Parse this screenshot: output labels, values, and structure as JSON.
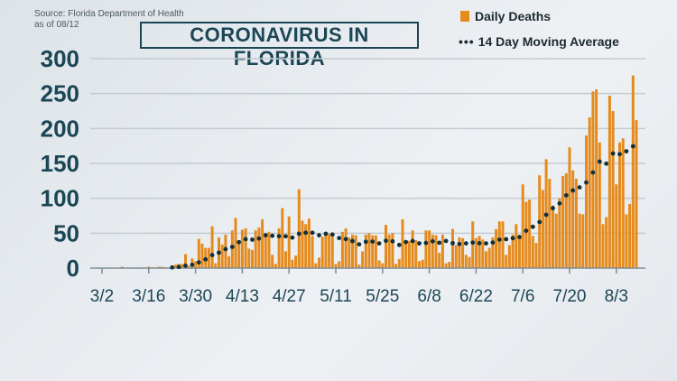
{
  "source": "Source: Florida Department of Health",
  "date": "as of 08/12",
  "chart_data": {
    "type": "bar",
    "title": "CORONAVIRUS IN FLORIDA",
    "start_date": "3/2",
    "legend": [
      {
        "name": "Daily Deaths",
        "color": "#e58b1e"
      },
      {
        "name": "14 Day Moving Average",
        "color": "#12303a"
      }
    ],
    "legend_position": "top-right",
    "ylim": [
      0,
      300
    ],
    "yticks": [
      "0",
      "50",
      "100",
      "150",
      "200",
      "250",
      "300"
    ],
    "xticks": [
      {
        "label": "3/2",
        "day": 0
      },
      {
        "label": "3/16",
        "day": 14
      },
      {
        "label": "3/30",
        "day": 28
      },
      {
        "label": "4/13",
        "day": 42
      },
      {
        "label": "4/27",
        "day": 56
      },
      {
        "label": "5/11",
        "day": 70
      },
      {
        "label": "5/25",
        "day": 84
      },
      {
        "label": "6/8",
        "day": 98
      },
      {
        "label": "6/22",
        "day": 112
      },
      {
        "label": "7/6",
        "day": 126
      },
      {
        "label": "7/20",
        "day": 140
      },
      {
        "label": "8/3",
        "day": 154
      }
    ],
    "daily_deaths": [
      0,
      0,
      0,
      0,
      0,
      0,
      2,
      0,
      0,
      0,
      1,
      1,
      0,
      0,
      2,
      1,
      1,
      2,
      2,
      1,
      0,
      3,
      5,
      6,
      6,
      20,
      3,
      14,
      10,
      42,
      35,
      29,
      29,
      60,
      7,
      44,
      34,
      48,
      17,
      54,
      72,
      40,
      55,
      57,
      28,
      26,
      54,
      58,
      70,
      47,
      52,
      19,
      6,
      57,
      86,
      24,
      74,
      12,
      18,
      113,
      68,
      63,
      71,
      46,
      7,
      15,
      45,
      48,
      49,
      45,
      6,
      10,
      52,
      57,
      44,
      48,
      47,
      5,
      24,
      48,
      50,
      47,
      47,
      11,
      7,
      62,
      48,
      50,
      6,
      13,
      70,
      40,
      39,
      54,
      40,
      10,
      12,
      54,
      54,
      48,
      47,
      22,
      48,
      7,
      9,
      56,
      33,
      44,
      43,
      19,
      16,
      67,
      43,
      46,
      41,
      24,
      29,
      44,
      56,
      67,
      67,
      19,
      33,
      48,
      63,
      44,
      120,
      95,
      98,
      46,
      36,
      133,
      112,
      156,
      128,
      90,
      78,
      100,
      132,
      136,
      173,
      140,
      128,
      78,
      77,
      190,
      216,
      253,
      256,
      180,
      63,
      73,
      247,
      225,
      120,
      180,
      186,
      77,
      92,
      276,
      212
    ]
  }
}
